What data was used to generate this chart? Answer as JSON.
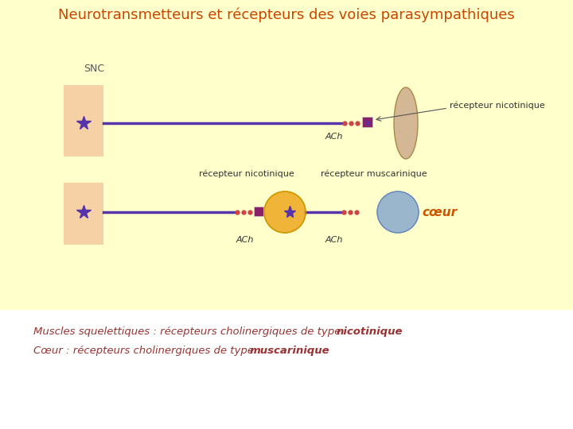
{
  "title": "Neurotransmetteurs et récepteurs des voies parasympathiques",
  "title_color": "#CC4400",
  "bg_color": "#FFFFCC",
  "snc_label": "SNC",
  "snc_color": "#F5C9A0",
  "line_color": "#5533AA",
  "neuron_color": "#5533AA",
  "receptor_color": "#882266",
  "ganglia_color": "#F0B030",
  "spindle_color": "#D4B896",
  "heart_color": "#88AACC",
  "ach_label": "ACh",
  "recepteur_nicotinique_label": "récepteur nicotinique",
  "recepteur_muscarinique_label": "récepteur muscarinique",
  "coeur_label": "cœur",
  "bottom_text1_normal": "Muscles squelettiques : récepteurs cholinergiques de type ",
  "bottom_text1_bold": "nicotinique",
  "bottom_text2_normal": "Cœur : récepteurs cholinergiques de type ",
  "bottom_text2_bold": "muscarinique",
  "bottom_text_color": "#993333",
  "dot_color": "#CC4444",
  "label_color": "#555555",
  "coeur_color": "#CC5500"
}
